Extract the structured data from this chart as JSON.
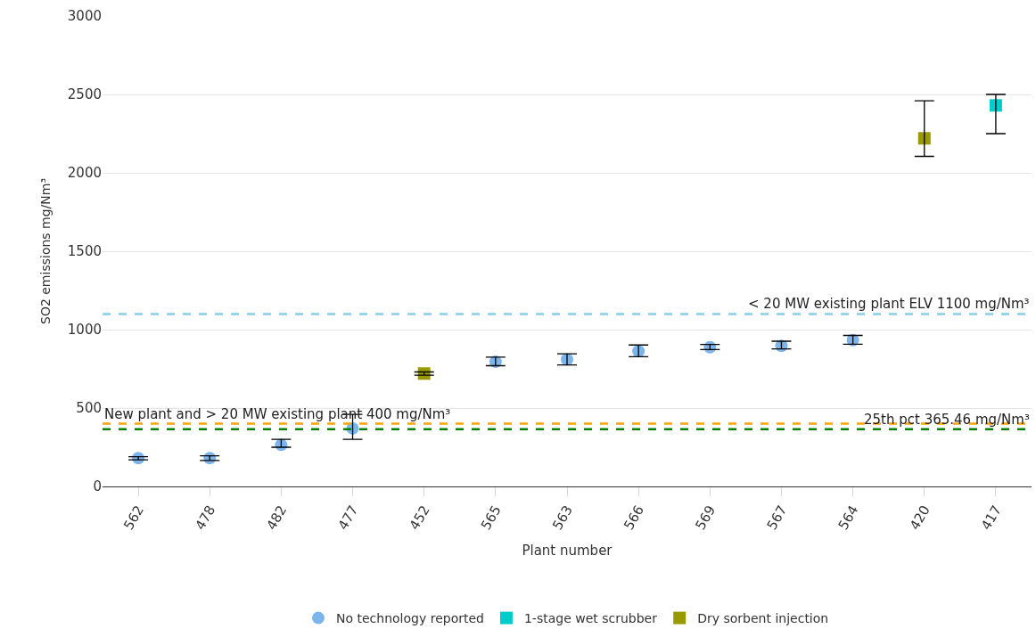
{
  "chart_data": {
    "type": "scatter",
    "xlabel": "Plant number",
    "ylabel": "SO2 emissions mg/Nm³",
    "categories": [
      "562",
      "478",
      "482",
      "477",
      "452",
      "565",
      "563",
      "566",
      "569",
      "567",
      "564",
      "420",
      "417"
    ],
    "series": [
      {
        "name": "No technology reported",
        "color": "#7cb5ec",
        "marker": "circle",
        "values": [
          180,
          180,
          265,
          370,
          null,
          795,
          810,
          862,
          888,
          896,
          933,
          null,
          null
        ],
        "errors": [
          [
            170,
            190
          ],
          [
            165,
            195
          ],
          [
            250,
            300
          ],
          [
            300,
            460
          ],
          null,
          [
            770,
            825
          ],
          [
            775,
            846
          ],
          [
            827,
            902
          ],
          [
            873,
            906
          ],
          [
            877,
            926
          ],
          [
            907,
            963
          ],
          null,
          null
        ]
      },
      {
        "name": "1-stage wet scrubber",
        "color": "#00cccc",
        "marker": "square",
        "values": [
          null,
          null,
          null,
          null,
          null,
          null,
          null,
          null,
          null,
          null,
          null,
          null,
          2430
        ],
        "errors": [
          null,
          null,
          null,
          null,
          null,
          null,
          null,
          null,
          null,
          null,
          null,
          null,
          [
            2250,
            2500
          ]
        ]
      },
      {
        "name": "Dry sorbent injection",
        "color": "#999900",
        "marker": "square",
        "values": [
          null,
          null,
          null,
          null,
          720,
          null,
          null,
          null,
          null,
          null,
          null,
          2220,
          null
        ],
        "errors": [
          null,
          null,
          null,
          null,
          [
            710,
            730
          ],
          null,
          null,
          null,
          null,
          null,
          null,
          [
            2105,
            2460
          ],
          null
        ]
      }
    ],
    "ylim": [
      0,
      3000
    ],
    "yticks": [
      0,
      500,
      1000,
      1500,
      2000,
      2500,
      3000
    ],
    "grid": "y",
    "legend": "bottom",
    "ref_lines": [
      {
        "axis": "y",
        "value": 1100,
        "label": "< 20 MW existing plant ELV 1100 mg/Nm³",
        "color": "#87ceeb",
        "line_style": "dashed"
      },
      {
        "axis": "y",
        "value": 400,
        "label": "New plant and > 20 MW existing plant 400 mg/Nm³",
        "color": "#ffa500",
        "line_style": "dashed"
      },
      {
        "axis": "y",
        "value": 365.46,
        "label": "25th pct 365.46 mg/Nm³",
        "color": "#008000",
        "line_style": "dashed"
      }
    ]
  }
}
